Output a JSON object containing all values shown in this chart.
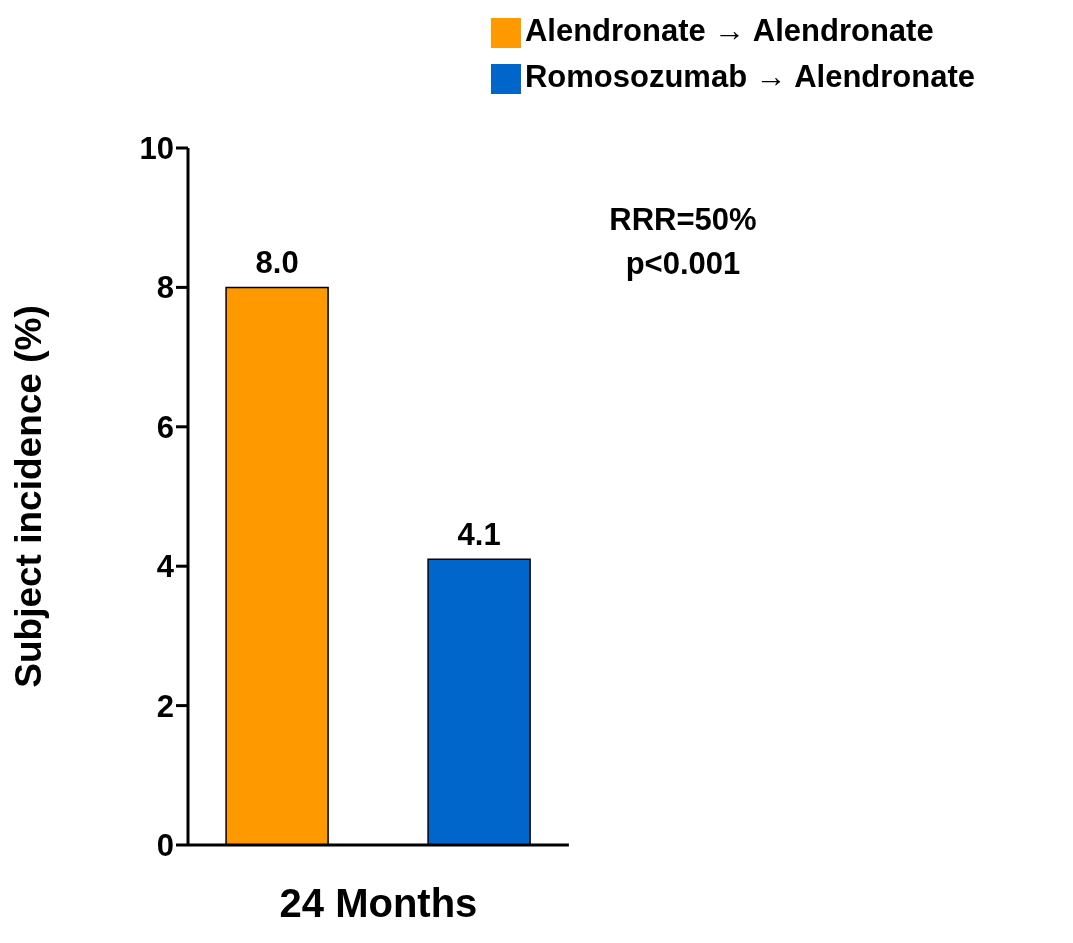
{
  "chart_data": {
    "type": "bar",
    "categories": [
      "24 Months"
    ],
    "ylabel": "Subject incidence (%)",
    "series": [
      {
        "name": "Alendronate → Alendronate",
        "color": "#ff9900",
        "values": [
          8.0
        ],
        "value_labels": [
          "8.0"
        ]
      },
      {
        "name": "Romosozumab → Alendronate",
        "color": "#0066cc",
        "values": [
          4.1
        ],
        "value_labels": [
          "4.1"
        ]
      }
    ],
    "ylim": [
      0,
      10
    ],
    "yticks": [
      0,
      2,
      4,
      6,
      8,
      10
    ],
    "grid": false,
    "legend": "top right",
    "annotations": [
      "RRR=50%",
      "p<0.001"
    ]
  }
}
